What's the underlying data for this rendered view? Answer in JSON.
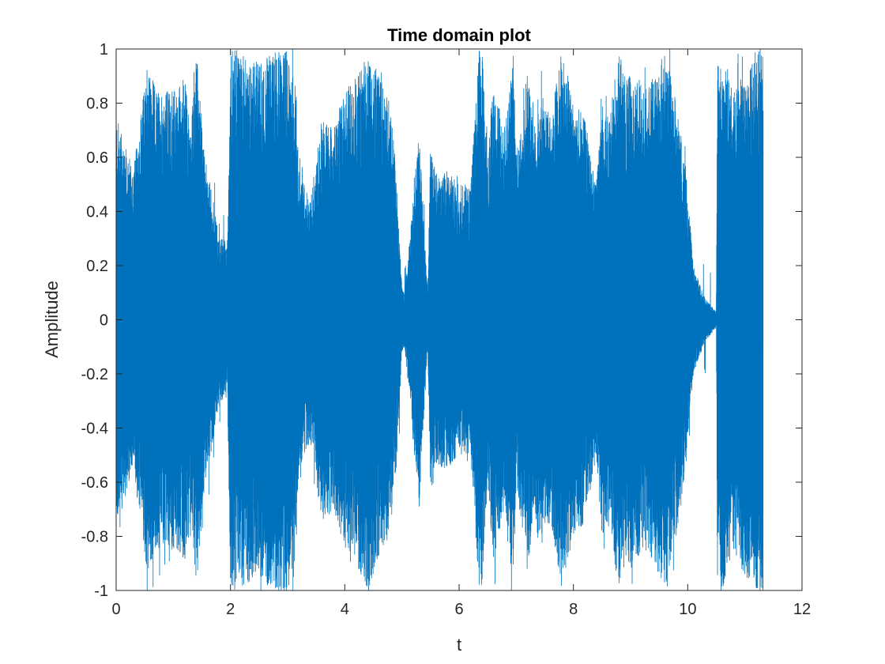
{
  "chart_data": {
    "type": "line",
    "title": "Time domain plot",
    "xlabel": "t",
    "ylabel": "Amplitude",
    "xlim": [
      0,
      12
    ],
    "ylim": [
      -1,
      1
    ],
    "xticks": [
      0,
      2,
      4,
      6,
      8,
      10,
      12
    ],
    "yticks": [
      -1,
      -0.8,
      -0.6,
      -0.4,
      -0.2,
      0,
      0.2,
      0.4,
      0.6,
      0.8,
      1
    ],
    "xtick_labels": [
      "0",
      "2",
      "4",
      "6",
      "8",
      "10",
      "12"
    ],
    "ytick_labels": [
      "-1",
      "-0.8",
      "-0.6",
      "-0.4",
      "-0.2",
      "0",
      "0.2",
      "0.4",
      "0.6",
      "0.8",
      "1"
    ],
    "grid": false,
    "line_color": "#0072BD",
    "series": [
      {
        "signal_duration": 11.32,
        "envelope_t": [
          0.0,
          0.1,
          0.3,
          0.55,
          0.7,
          1.0,
          1.2,
          1.3,
          1.4,
          1.55,
          1.7,
          1.8,
          1.95,
          2.0,
          2.1,
          2.5,
          2.8,
          3.0,
          3.15,
          3.2,
          3.4,
          3.6,
          3.8,
          4.0,
          4.2,
          4.4,
          4.6,
          4.8,
          4.9,
          5.0,
          5.05,
          5.3,
          5.45,
          5.5,
          5.6,
          5.8,
          6.0,
          6.2,
          6.35,
          6.4,
          6.5,
          6.6,
          6.8,
          6.95,
          7.0,
          7.2,
          7.3,
          7.4,
          7.6,
          7.8,
          8.0,
          8.2,
          8.4,
          8.5,
          8.6,
          8.8,
          8.9,
          9.0,
          9.3,
          9.6,
          9.8,
          9.95,
          10.1,
          10.3,
          10.5,
          10.52,
          10.6,
          10.8,
          11.0,
          11.2,
          11.32
        ],
        "envelope_amp": [
          0.75,
          0.7,
          0.55,
          0.95,
          0.85,
          0.85,
          0.9,
          0.7,
          1.0,
          0.6,
          0.45,
          0.3,
          0.3,
          1.0,
          1.0,
          0.95,
          1.0,
          1.0,
          0.85,
          0.55,
          0.45,
          0.75,
          0.7,
          0.85,
          0.9,
          1.0,
          0.9,
          0.8,
          0.55,
          0.12,
          0.1,
          0.7,
          0.1,
          0.65,
          0.55,
          0.55,
          0.5,
          0.5,
          1.0,
          1.0,
          0.6,
          0.9,
          0.7,
          1.0,
          0.6,
          0.95,
          0.7,
          0.85,
          0.75,
          1.0,
          0.8,
          0.75,
          0.5,
          0.8,
          0.75,
          1.0,
          0.9,
          0.9,
          0.85,
          1.0,
          0.8,
          0.6,
          0.2,
          0.08,
          0.03,
          1.0,
          1.0,
          0.85,
          0.95,
          1.0,
          1.0
        ]
      }
    ]
  }
}
